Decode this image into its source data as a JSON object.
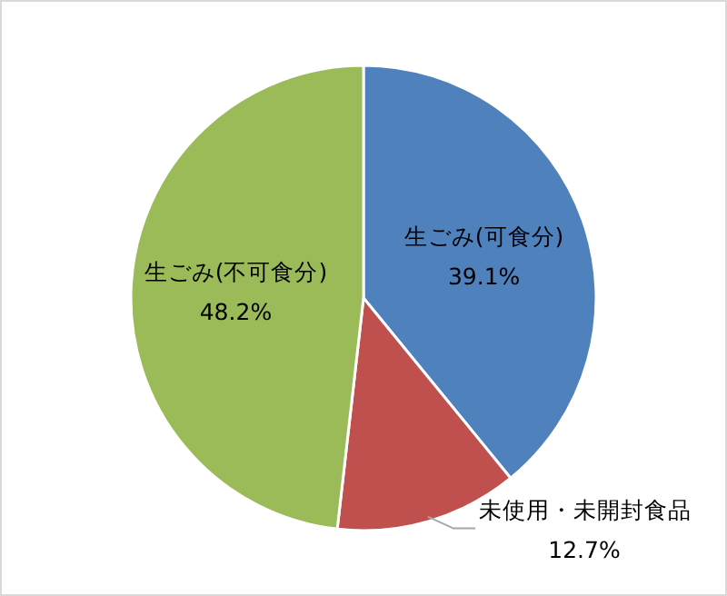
{
  "chart_data": {
    "type": "pie",
    "categories": [
      "生ごみ(可食分)",
      "未使用・未開封食品",
      "生ごみ(不可食分)"
    ],
    "values": [
      39.1,
      12.7,
      48.2
    ],
    "colors": [
      "#4f81bd",
      "#c0504d",
      "#9bbb59"
    ],
    "value_labels": [
      "39.1%",
      "12.7%",
      "48.2%"
    ]
  }
}
